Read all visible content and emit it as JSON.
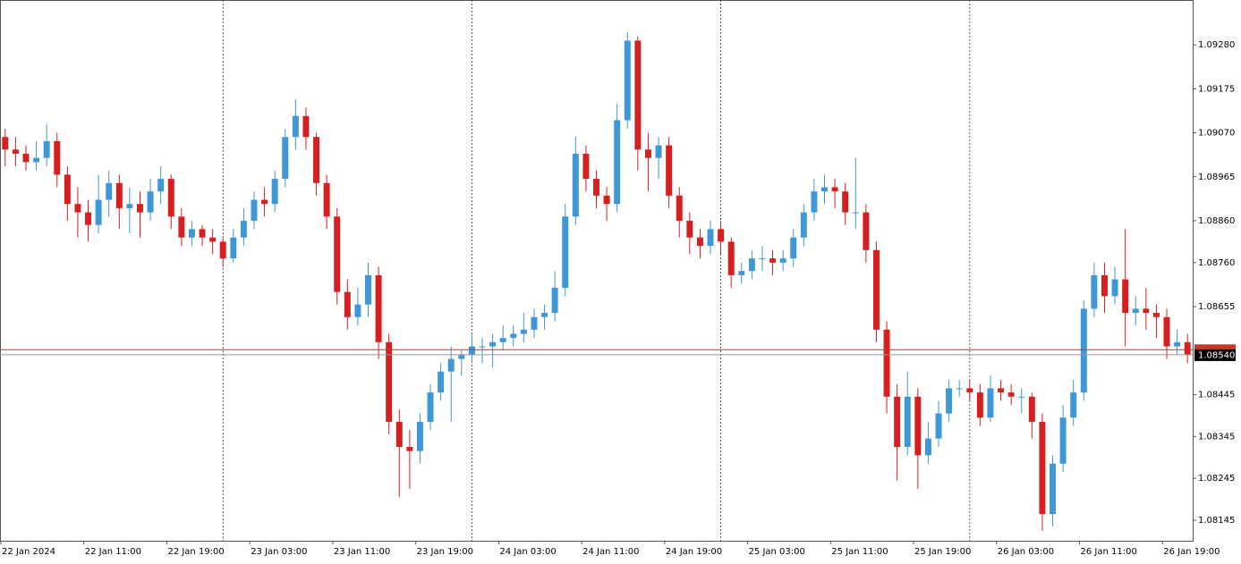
{
  "chart_data": {
    "type": "candlestick",
    "up_color": "#3d97d8",
    "down_color": "#d62020",
    "ylim": [
      1.08096,
      1.09387
    ],
    "yticks": [
      {
        "value": 1.0928,
        "label": "1.09280"
      },
      {
        "value": 1.09175,
        "label": "1.09175"
      },
      {
        "value": 1.0907,
        "label": "1.09070"
      },
      {
        "value": 1.08965,
        "label": "1.08965"
      },
      {
        "value": 1.0886,
        "label": "1.08860"
      },
      {
        "value": 1.0876,
        "label": "1.08760"
      },
      {
        "value": 1.08655,
        "label": "1.08655"
      },
      {
        "value": 1.08445,
        "label": "1.08445"
      },
      {
        "value": 1.08345,
        "label": "1.08345"
      },
      {
        "value": 1.08245,
        "label": "1.08245"
      },
      {
        "value": 1.08145,
        "label": "1.08145"
      }
    ],
    "xticks": [
      {
        "value": 0,
        "label": "22 Jan 2024"
      },
      {
        "value": 8,
        "label": "22 Jan 11:00"
      },
      {
        "value": 16,
        "label": "22 Jan 19:00"
      },
      {
        "value": 24,
        "label": "23 Jan 03:00"
      },
      {
        "value": 32,
        "label": "23 Jan 11:00"
      },
      {
        "value": 40,
        "label": "23 Jan 19:00"
      },
      {
        "value": 48,
        "label": "24 Jan 03:00"
      },
      {
        "value": 56,
        "label": "24 Jan 11:00"
      },
      {
        "value": 64,
        "label": "24 Jan 19:00"
      },
      {
        "value": 72,
        "label": "25 Jan 03:00"
      },
      {
        "value": 80,
        "label": "25 Jan 11:00"
      },
      {
        "value": 88,
        "label": "25 Jan 19:00"
      },
      {
        "value": 96,
        "label": "26 Jan 03:00"
      },
      {
        "value": 104,
        "label": "26 Jan 11:00"
      },
      {
        "value": 112,
        "label": "26 Jan 19:00"
      }
    ],
    "period_separators": [
      21,
      45,
      69,
      93
    ],
    "ask_line": {
      "value": 1.08552,
      "color": "#c0392b"
    },
    "bid_line": {
      "value": 1.0854,
      "label": "1.08540",
      "color": "#999999"
    },
    "ohlc": [
      [
        1.0906,
        1.0908,
        1.0899,
        1.0903
      ],
      [
        1.0903,
        1.0906,
        1.0899,
        1.0902
      ],
      [
        1.0902,
        1.0904,
        1.0898,
        1.09
      ],
      [
        1.09,
        1.0905,
        1.0898,
        1.0901
      ],
      [
        1.0901,
        1.0909,
        1.0899,
        1.0905
      ],
      [
        1.0905,
        1.0907,
        1.0894,
        1.0897
      ],
      [
        1.0897,
        1.0899,
        1.0886,
        1.089
      ],
      [
        1.089,
        1.0894,
        1.0882,
        1.0888
      ],
      [
        1.0888,
        1.0891,
        1.0881,
        1.0885
      ],
      [
        1.0885,
        1.0897,
        1.0883,
        1.0891
      ],
      [
        1.0891,
        1.0898,
        1.0887,
        1.0895
      ],
      [
        1.0895,
        1.0897,
        1.0884,
        1.0889
      ],
      [
        1.0889,
        1.0894,
        1.0883,
        1.089
      ],
      [
        1.089,
        1.0893,
        1.0882,
        1.0888
      ],
      [
        1.0888,
        1.0896,
        1.0886,
        1.0893
      ],
      [
        1.0893,
        1.0899,
        1.089,
        1.0896
      ],
      [
        1.0896,
        1.0897,
        1.0884,
        1.0887
      ],
      [
        1.0887,
        1.0889,
        1.088,
        1.0882
      ],
      [
        1.0882,
        1.0886,
        1.088,
        1.0884
      ],
      [
        1.0884,
        1.0885,
        1.088,
        1.0882
      ],
      [
        1.0882,
        1.0884,
        1.0878,
        1.0881
      ],
      [
        1.0881,
        1.0882,
        1.0875,
        1.0877
      ],
      [
        1.0877,
        1.0884,
        1.0876,
        1.0882
      ],
      [
        1.0882,
        1.0889,
        1.088,
        1.0886
      ],
      [
        1.0886,
        1.0893,
        1.0884,
        1.0891
      ],
      [
        1.0891,
        1.0894,
        1.0887,
        1.089
      ],
      [
        1.089,
        1.0898,
        1.0888,
        1.0896
      ],
      [
        1.0896,
        1.0908,
        1.0894,
        1.0906
      ],
      [
        1.0906,
        1.0915,
        1.0903,
        1.0911
      ],
      [
        1.0911,
        1.0913,
        1.0903,
        1.0906
      ],
      [
        1.0906,
        1.0907,
        1.0892,
        1.0895
      ],
      [
        1.0895,
        1.0897,
        1.0884,
        1.0887
      ],
      [
        1.0887,
        1.0889,
        1.0866,
        1.0869
      ],
      [
        1.0869,
        1.0872,
        1.086,
        1.0863
      ],
      [
        1.0863,
        1.087,
        1.0861,
        1.0866
      ],
      [
        1.0866,
        1.0876,
        1.0863,
        1.0873
      ],
      [
        1.0873,
        1.0875,
        1.0853,
        1.0857
      ],
      [
        1.0857,
        1.0859,
        1.0835,
        1.0838
      ],
      [
        1.0838,
        1.0841,
        1.082,
        1.0832
      ],
      [
        1.0832,
        1.0836,
        1.0822,
        1.0831
      ],
      [
        1.0831,
        1.084,
        1.0828,
        1.0838
      ],
      [
        1.0838,
        1.0847,
        1.0836,
        1.0845
      ],
      [
        1.0845,
        1.0852,
        1.0843,
        1.085
      ],
      [
        1.085,
        1.0856,
        1.0838,
        1.0853
      ],
      [
        1.0853,
        1.0855,
        1.0849,
        1.0854
      ],
      [
        1.0854,
        1.0859,
        1.0852,
        1.0856
      ],
      [
        1.0856,
        1.0858,
        1.0852,
        1.0856
      ],
      [
        1.0856,
        1.0859,
        1.0851,
        1.0857
      ],
      [
        1.0857,
        1.0861,
        1.0855,
        1.0858
      ],
      [
        1.0858,
        1.0861,
        1.0856,
        1.0859
      ],
      [
        1.0859,
        1.0864,
        1.0857,
        1.086
      ],
      [
        1.086,
        1.0865,
        1.0858,
        1.0863
      ],
      [
        1.0863,
        1.0866,
        1.086,
        1.0864
      ],
      [
        1.0864,
        1.0874,
        1.0862,
        1.087
      ],
      [
        1.087,
        1.089,
        1.0868,
        1.0887
      ],
      [
        1.0887,
        1.0906,
        1.0885,
        1.0902
      ],
      [
        1.0902,
        1.0904,
        1.0893,
        1.0896
      ],
      [
        1.0896,
        1.0898,
        1.0889,
        1.0892
      ],
      [
        1.0892,
        1.0894,
        1.0886,
        1.089
      ],
      [
        1.089,
        1.0914,
        1.0888,
        1.091
      ],
      [
        1.091,
        1.0931,
        1.0908,
        1.0929
      ],
      [
        1.0929,
        1.093,
        1.0898,
        1.0903
      ],
      [
        1.0903,
        1.0907,
        1.0893,
        1.0901
      ],
      [
        1.0901,
        1.0906,
        1.0896,
        1.0904
      ],
      [
        1.0904,
        1.0906,
        1.0889,
        1.0892
      ],
      [
        1.0892,
        1.0894,
        1.0882,
        1.0886
      ],
      [
        1.0886,
        1.0888,
        1.0878,
        1.0882
      ],
      [
        1.0882,
        1.0884,
        1.0877,
        1.088
      ],
      [
        1.088,
        1.0886,
        1.0878,
        1.0884
      ],
      [
        1.0884,
        1.0886,
        1.0878,
        1.0881
      ],
      [
        1.0881,
        1.0882,
        1.087,
        1.0873
      ],
      [
        1.0873,
        1.0876,
        1.0871,
        1.0874
      ],
      [
        1.0874,
        1.0879,
        1.0872,
        1.0877
      ],
      [
        1.0877,
        1.088,
        1.0874,
        1.0877
      ],
      [
        1.0877,
        1.0879,
        1.0873,
        1.0876
      ],
      [
        1.0876,
        1.0879,
        1.0874,
        1.0877
      ],
      [
        1.0877,
        1.0884,
        1.0875,
        1.0882
      ],
      [
        1.0882,
        1.089,
        1.088,
        1.0888
      ],
      [
        1.0888,
        1.0896,
        1.0886,
        1.0893
      ],
      [
        1.0893,
        1.0897,
        1.089,
        1.0894
      ],
      [
        1.0894,
        1.0896,
        1.0889,
        1.0893
      ],
      [
        1.0893,
        1.0895,
        1.0885,
        1.0888
      ],
      [
        1.0888,
        1.0901,
        1.0884,
        1.0888
      ],
      [
        1.0888,
        1.089,
        1.0876,
        1.0879
      ],
      [
        1.0879,
        1.0881,
        1.0857,
        1.086
      ],
      [
        1.086,
        1.0862,
        1.084,
        1.0844
      ],
      [
        1.0844,
        1.0847,
        1.0824,
        1.0832
      ],
      [
        1.0832,
        1.085,
        1.083,
        1.0844
      ],
      [
        1.0844,
        1.0846,
        1.0822,
        1.083
      ],
      [
        1.083,
        1.0838,
        1.0828,
        1.0834
      ],
      [
        1.0834,
        1.0843,
        1.0832,
        1.084
      ],
      [
        1.084,
        1.0848,
        1.0838,
        1.0846
      ],
      [
        1.0846,
        1.0848,
        1.0844,
        1.0846
      ],
      [
        1.0846,
        1.0848,
        1.0843,
        1.0845
      ],
      [
        1.0845,
        1.0847,
        1.0837,
        1.0839
      ],
      [
        1.0839,
        1.0849,
        1.0838,
        1.0846
      ],
      [
        1.0846,
        1.0848,
        1.0843,
        1.0845
      ],
      [
        1.0845,
        1.0847,
        1.0842,
        1.0844
      ],
      [
        1.0844,
        1.0846,
        1.084,
        1.0844
      ],
      [
        1.0844,
        1.0845,
        1.0834,
        1.0838
      ],
      [
        1.0838,
        1.084,
        1.0812,
        1.0816
      ],
      [
        1.0816,
        1.083,
        1.0813,
        1.0828
      ],
      [
        1.0828,
        1.0842,
        1.0826,
        1.0839
      ],
      [
        1.0839,
        1.0848,
        1.0837,
        1.0845
      ],
      [
        1.0845,
        1.0867,
        1.0843,
        1.0865
      ],
      [
        1.0865,
        1.0876,
        1.0863,
        1.0873
      ],
      [
        1.0873,
        1.0876,
        1.0864,
        1.0868
      ],
      [
        1.0868,
        1.0875,
        1.0866,
        1.0872
      ],
      [
        1.0872,
        1.0884,
        1.0856,
        1.0864
      ],
      [
        1.0864,
        1.0868,
        1.0861,
        1.0865
      ],
      [
        1.0865,
        1.087,
        1.086,
        1.0864
      ],
      [
        1.0864,
        1.0866,
        1.0858,
        1.0863
      ],
      [
        1.0863,
        1.0865,
        1.0853,
        1.0856
      ],
      [
        1.0856,
        1.086,
        1.0854,
        1.0857
      ],
      [
        1.0857,
        1.0859,
        1.0852,
        1.0854
      ]
    ]
  }
}
